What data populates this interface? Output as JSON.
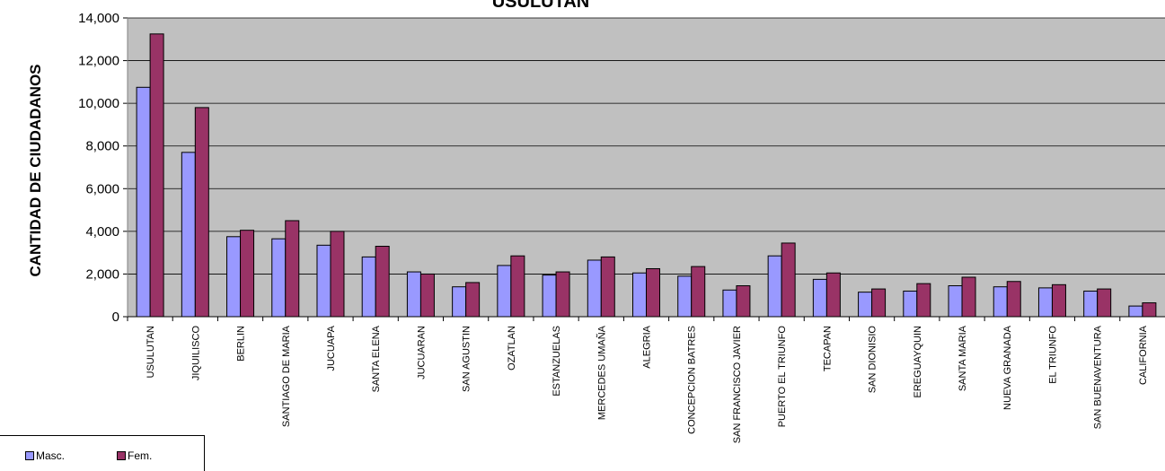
{
  "chart_data": {
    "type": "bar",
    "title": "USULUTAN",
    "xlabel": "",
    "ylabel": "CANTIDAD DE CIUDADANOS",
    "ylim": [
      0,
      14000
    ],
    "yticks": [
      "0",
      "2,000",
      "4,000",
      "6,000",
      "8,000",
      "10,000",
      "12,000",
      "14,000"
    ],
    "grid": true,
    "legend_position": "bottom-left",
    "plot_background": "#C0C0C0",
    "categories": [
      "USULUTAN",
      "JIQUILISCO",
      "BERLIN",
      "SANTIAGO DE MARIA",
      "JUCUAPA",
      "SANTA ELENA",
      "JUCUARAN",
      "SAN AGUSTIN",
      "OZATLAN",
      "ESTANZUELAS",
      "MERCEDES UMAÑA",
      "ALEGRIA",
      "CONCEPCION BATRES",
      "SAN FRANCISCO JAVIER",
      "PUERTO EL TRIUNFO",
      "TECAPAN",
      "SAN DIONISIO",
      "EREGUAYQUIN",
      "SANTA MARIA",
      "NUEVA GRANADA",
      "EL TRIUNFO",
      "SAN BUENAVENTURA",
      "CALIFORNIA"
    ],
    "series": [
      {
        "name": "Masc.",
        "color": "#9999FF",
        "values": [
          10750,
          7700,
          3750,
          3650,
          3350,
          2800,
          2100,
          1400,
          2400,
          1950,
          2650,
          2050,
          1900,
          1250,
          2850,
          1750,
          1150,
          1200,
          1450,
          1400,
          1350,
          1200,
          500
        ]
      },
      {
        "name": "Fem.",
        "color": "#993366",
        "values": [
          13250,
          9800,
          4050,
          4500,
          4000,
          3300,
          2000,
          1600,
          2850,
          2100,
          2800,
          2250,
          2350,
          1450,
          3450,
          2050,
          1300,
          1550,
          1850,
          1650,
          1500,
          1300,
          650
        ]
      }
    ]
  }
}
